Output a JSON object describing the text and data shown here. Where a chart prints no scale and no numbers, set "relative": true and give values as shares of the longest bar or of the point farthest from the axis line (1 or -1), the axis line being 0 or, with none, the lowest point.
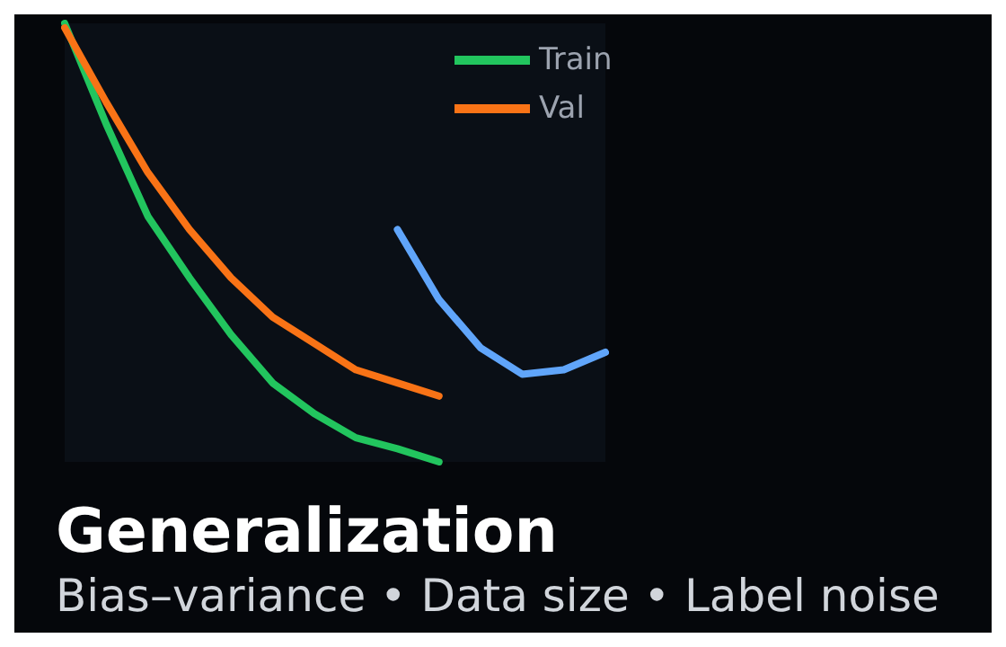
{
  "chart_data": {
    "type": "line",
    "title": "Generalization",
    "subtitle": "Bias–variance • Data size • Label noise",
    "relative": true,
    "categories": [
      null,
      null,
      null,
      null,
      null,
      null,
      null,
      null,
      null,
      null,
      null,
      null,
      null,
      null
    ],
    "legend": "top",
    "marker": "none",
    "line_style": "solid",
    "series": [
      {
        "name": "Train",
        "color": "#22c55e",
        "values": [
          1,
          0.77,
          0.56,
          0.42,
          0.29,
          0.18,
          0.11,
          0.055,
          0.03,
          0,
          null,
          null,
          null,
          null
        ]
      },
      {
        "name": "Val",
        "color": "#f97316",
        "values": [
          0.99,
          0.82,
          0.66,
          0.53,
          0.42,
          0.33,
          0.27,
          0.21,
          0.18,
          0.15,
          null,
          null,
          null,
          null
        ]
      },
      {
        "color": "#60a5fa",
        "values": [
          null,
          null,
          null,
          null,
          null,
          null,
          null,
          null,
          0.53,
          0.37,
          0.26,
          0.2,
          0.21,
          0.25
        ]
      }
    ]
  }
}
